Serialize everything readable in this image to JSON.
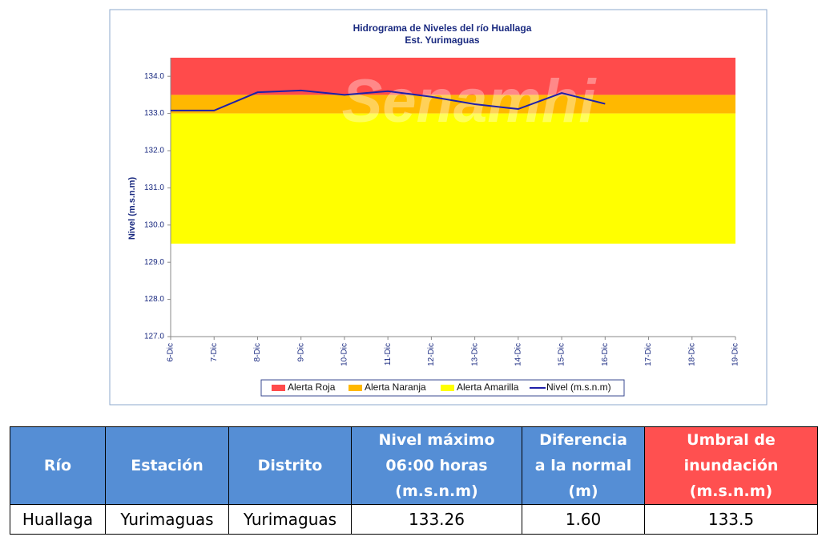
{
  "chart_data": {
    "type": "line",
    "title": "Hidrograma de Niveles del río Huallaga",
    "subtitle": "Est. Yurimaguas",
    "watermark": "Senamhi",
    "y_label": "Nivel (m.s.n.m)",
    "categories": [
      "6-Dic",
      "7-Dic",
      "8-Dic",
      "9-Dic",
      "10-Dic",
      "11-Dic",
      "12-Dic",
      "13-Dic",
      "14-Dic",
      "15-Dic",
      "16-Dic",
      "17-Dic",
      "18-Dic",
      "19-Dic"
    ],
    "bands": [
      {
        "name": "Alerta Roja",
        "color": "#ff4b4b",
        "from": 133.5,
        "to": 134.5
      },
      {
        "name": "Alerta Naranja",
        "color": "#ffb800",
        "from": 133.0,
        "to": 133.5
      },
      {
        "name": "Alerta Amarilla",
        "color": "#ffff00",
        "from": 129.5,
        "to": 133.0
      }
    ],
    "series": [
      {
        "name": "Nivel (m.s.n.m)",
        "color": "#1f1fa8",
        "values": [
          133.08,
          133.08,
          133.57,
          133.62,
          133.5,
          133.6,
          133.45,
          133.25,
          133.12,
          133.55,
          133.26,
          null,
          null,
          null
        ]
      }
    ],
    "ylim": [
      127,
      134.5
    ],
    "yticks": [
      {
        "value": 127,
        "label": "127.0"
      },
      {
        "value": 128,
        "label": "128.0"
      },
      {
        "value": 129,
        "label": "129.0"
      },
      {
        "value": 130,
        "label": "130.0"
      },
      {
        "value": 131,
        "label": "131.0"
      },
      {
        "value": 132,
        "label": "132.0"
      },
      {
        "value": 133,
        "label": "133.0"
      },
      {
        "value": 134,
        "label": "134.0"
      }
    ],
    "legend": "bottom"
  },
  "table": {
    "header": [
      "Río",
      "Estación",
      "Distrito",
      "Nivel máximo\n06:00 horas\n(m.s.n.m)",
      "Diferencia\na la normal\n(m)",
      "Umbral de\ninundación\n(m.s.n.m)"
    ],
    "rows": [
      [
        "Huallaga",
        "Yurimaguas",
        "Yurimaguas",
        "133.26",
        "1.60",
        "133.5"
      ]
    ]
  }
}
